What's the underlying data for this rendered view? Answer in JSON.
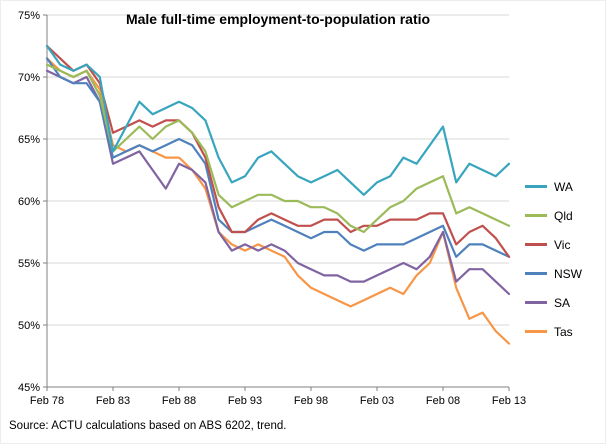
{
  "chart_data": {
    "type": "line",
    "title": "Male full-time employment-to-population ratio",
    "xlabel": "",
    "ylabel": "",
    "x": [
      1978,
      1979,
      1980,
      1981,
      1982,
      1983,
      1984,
      1985,
      1986,
      1987,
      1988,
      1989,
      1990,
      1991,
      1992,
      1993,
      1994,
      1995,
      1996,
      1997,
      1998,
      1999,
      2000,
      2001,
      2002,
      2003,
      2004,
      2005,
      2006,
      2007,
      2008,
      2009,
      2010,
      2011,
      2012,
      2013
    ],
    "x_tick_years": [
      1978,
      1983,
      1988,
      1993,
      1998,
      2003,
      2008,
      2013
    ],
    "x_tick_labels": [
      "Feb 78",
      "Feb 83",
      "Feb 88",
      "Feb 93",
      "Feb 98",
      "Feb 03",
      "Feb 08",
      "Feb 13"
    ],
    "y_ticks": [
      45,
      50,
      55,
      60,
      65,
      70,
      75
    ],
    "y_tick_suffix": "%",
    "ylim": [
      45,
      75
    ],
    "xlim": [
      1978,
      2013
    ],
    "grid": "horizontal",
    "legend_position": "right",
    "axis_color": "#808080",
    "grid_color": "#d9d9d9",
    "series": [
      {
        "name": "WA",
        "color": "#38a5bf",
        "values": [
          72.5,
          71.0,
          70.5,
          71.0,
          70.0,
          64.0,
          66.0,
          68.0,
          67.0,
          67.5,
          68.0,
          67.5,
          66.5,
          63.5,
          61.5,
          62.0,
          63.5,
          64.0,
          63.0,
          62.0,
          61.5,
          62.0,
          62.5,
          61.5,
          60.5,
          61.5,
          62.0,
          63.5,
          63.0,
          64.5,
          66.0,
          61.5,
          63.0,
          62.5,
          62.0,
          63.0
        ]
      },
      {
        "name": "Qld",
        "color": "#9bbb59",
        "values": [
          71.0,
          70.5,
          70.0,
          70.5,
          68.5,
          64.0,
          65.0,
          66.0,
          65.0,
          66.0,
          66.5,
          65.5,
          64.0,
          60.5,
          59.5,
          60.0,
          60.5,
          60.5,
          60.0,
          60.0,
          59.5,
          59.5,
          59.0,
          58.0,
          57.5,
          58.5,
          59.5,
          60.0,
          61.0,
          61.5,
          62.0,
          59.0,
          59.5,
          59.0,
          58.5,
          58.0
        ]
      },
      {
        "name": "Vic",
        "color": "#c0504d",
        "values": [
          72.5,
          71.5,
          70.5,
          71.0,
          69.5,
          65.5,
          66.0,
          66.5,
          66.0,
          66.5,
          66.5,
          65.5,
          63.5,
          59.5,
          57.5,
          57.5,
          58.5,
          59.0,
          58.5,
          58.0,
          58.0,
          58.5,
          58.5,
          57.5,
          58.0,
          58.0,
          58.5,
          58.5,
          58.5,
          59.0,
          59.0,
          56.5,
          57.5,
          58.0,
          57.0,
          55.5
        ]
      },
      {
        "name": "NSW",
        "color": "#4f81bd",
        "values": [
          71.5,
          70.0,
          69.5,
          69.5,
          68.0,
          63.5,
          64.0,
          64.5,
          64.0,
          64.5,
          65.0,
          64.5,
          63.0,
          58.5,
          57.5,
          57.5,
          58.0,
          58.5,
          58.0,
          57.5,
          57.0,
          57.5,
          57.5,
          56.5,
          56.0,
          56.5,
          56.5,
          56.5,
          57.0,
          57.5,
          58.0,
          55.5,
          56.5,
          56.5,
          56.0,
          55.5
        ]
      },
      {
        "name": "SA",
        "color": "#8064a2",
        "values": [
          70.5,
          70.0,
          69.5,
          70.0,
          68.0,
          63.0,
          63.5,
          64.0,
          62.5,
          61.0,
          63.0,
          62.5,
          61.5,
          57.5,
          56.0,
          56.5,
          56.0,
          56.5,
          56.0,
          55.0,
          54.5,
          54.0,
          54.0,
          53.5,
          53.5,
          54.0,
          54.5,
          55.0,
          54.5,
          55.5,
          57.5,
          53.5,
          54.5,
          54.5,
          53.5,
          52.5
        ]
      },
      {
        "name": "Tas",
        "color": "#f79646",
        "values": [
          71.5,
          70.5,
          70.0,
          70.5,
          69.0,
          64.5,
          64.0,
          64.5,
          64.0,
          63.5,
          63.5,
          62.5,
          61.0,
          57.5,
          56.5,
          56.0,
          56.5,
          56.0,
          55.5,
          54.0,
          53.0,
          52.5,
          52.0,
          51.5,
          52.0,
          52.5,
          53.0,
          52.5,
          54.0,
          55.0,
          57.5,
          53.0,
          50.5,
          51.0,
          49.5,
          48.5
        ]
      }
    ]
  },
  "source": "Source: ACTU calculations based on ABS 6202, trend."
}
